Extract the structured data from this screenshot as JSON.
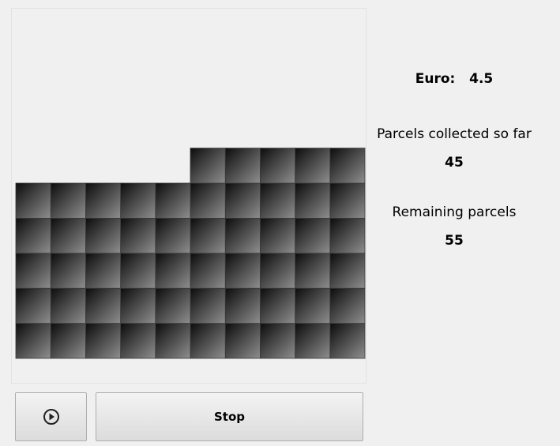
{
  "euro_label": "Euro:",
  "euro": 4.5,
  "collected_label": "Parcels collected so far",
  "collected": 45,
  "remaining_label": "Remaining parcels",
  "remaining": 55,
  "stop_button": "Stop"
}
